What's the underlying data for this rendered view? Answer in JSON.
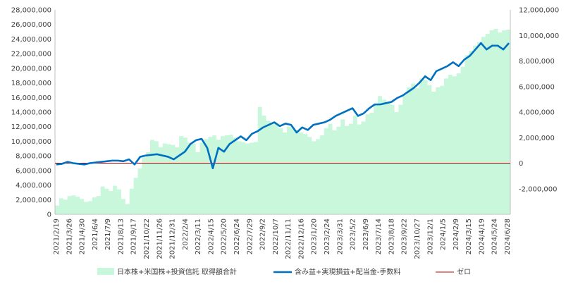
{
  "chart_data": {
    "type": "area+line",
    "title": "",
    "xlabel": "",
    "ylabel_left": "",
    "ylabel_right": "",
    "left_axis": {
      "min": 0,
      "max": 28000000,
      "step": 2000000,
      "tick_labels": [
        "0",
        "2,000,000",
        "4,000,000",
        "6,000,000",
        "8,000,000",
        "10,000,000",
        "12,000,000",
        "14,000,000",
        "16,000,000",
        "18,000,000",
        "20,000,000",
        "22,000,000",
        "24,000,000",
        "26,000,000",
        "28,000,000"
      ]
    },
    "right_axis": {
      "min": -4000000,
      "max": 12000000,
      "step": 2000000,
      "tick_labels": [
        "",
        "-2,000,000",
        "0",
        "2,000,000",
        "4,000,000",
        "6,000,000",
        "8,000,000",
        "10,000,000",
        "12,000,000"
      ]
    },
    "x_tick_labels": [
      "2021/2/19",
      "2021/3/26",
      "2021/4/30",
      "2021/6/4",
      "2021/7/9",
      "2021/8/13",
      "2021/9/17",
      "2021/10/22",
      "2021/11/26",
      "2021/12/31",
      "2022/2/4",
      "2022/3/11",
      "2022/4/15",
      "2022/5/20",
      "2022/6/24",
      "2022/7/29",
      "2022/9/2",
      "2022/10/7",
      "2022/11/11",
      "2022/12/16",
      "2023/1/20",
      "2023/2/24",
      "2023/3/31",
      "2023/5/2",
      "2023/6/9",
      "2023/7/14",
      "2023/8/18",
      "2023/9/22",
      "2023/10/27",
      "2023/12/1",
      "2024/1/5",
      "2024/2/9",
      "2024/3/15",
      "2024/4/19",
      "2024/5/24",
      "2024/6/28"
    ],
    "series": [
      {
        "name": "日本株+米国株+投資信託 取得額合計",
        "axis": "left",
        "kind": "area",
        "color": "#c8f7dc",
        "values": [
          1200000,
          2200000,
          2000000,
          2500000,
          2600000,
          2400000,
          2100000,
          1700000,
          1800000,
          2300000,
          2500000,
          3800000,
          3500000,
          3200000,
          3900000,
          3400000,
          2100000,
          1400000,
          3500000,
          5000000,
          6300000,
          7800000,
          8500000,
          10200000,
          10000000,
          9200000,
          9700000,
          9600000,
          9500000,
          9200000,
          10700000,
          10500000,
          9800000,
          9700000,
          8500000,
          9800000,
          10300000,
          10600000,
          10800000,
          10200000,
          10700000,
          10800000,
          10900000,
          10500000,
          10000000,
          9900000,
          9700000,
          9800000,
          9900000,
          14700000,
          13500000,
          12800000,
          12600000,
          12400000,
          11800000,
          11200000,
          12000000,
          11900000,
          11500000,
          11200000,
          11000000,
          10600000,
          10000000,
          10300000,
          10800000,
          11800000,
          12400000,
          11500000,
          12000000,
          13000000,
          12100000,
          12400000,
          13500000,
          12300000,
          12700000,
          13700000,
          13900000,
          15000000,
          16200000,
          15700000,
          15300000,
          15000000,
          14000000,
          15000000,
          16300000,
          17400000,
          17900000,
          17300000,
          18600000,
          18400000,
          17700000,
          16800000,
          17400000,
          17600000,
          18600000,
          19100000,
          18900000,
          19300000,
          20200000,
          21800000,
          22400000,
          23100000,
          23600000,
          24300000,
          24700000,
          25200000,
          25400000,
          24900000,
          25200000,
          25300000
        ]
      },
      {
        "name": "含み益+実現損益+配当金-手数料",
        "axis": "right",
        "kind": "line",
        "color": "#0070c0",
        "values": [
          -100000,
          -50000,
          100000,
          0,
          -50000,
          -100000,
          0,
          50000,
          100000,
          150000,
          200000,
          200000,
          150000,
          300000,
          -100000,
          500000,
          600000,
          650000,
          700000,
          600000,
          500000,
          300000,
          600000,
          900000,
          1500000,
          1800000,
          1900000,
          1200000,
          -400000,
          1200000,
          900000,
          1500000,
          1800000,
          2100000,
          1800000,
          2300000,
          2500000,
          2800000,
          3000000,
          3200000,
          2900000,
          3100000,
          3000000,
          2400000,
          2800000,
          2600000,
          3000000,
          3100000,
          3200000,
          3400000,
          3700000,
          3900000,
          4100000,
          4300000,
          3700000,
          3900000,
          4300000,
          4600000,
          4600000,
          4700000,
          4800000,
          5100000,
          5300000,
          5600000,
          5900000,
          6300000,
          6800000,
          6500000,
          7200000,
          7400000,
          7600000,
          7900000,
          7600000,
          8100000,
          8400000,
          8900000,
          9400000,
          8900000,
          9200000,
          9200000,
          8900000,
          9400000
        ],
        "line_y_min": -400000
      },
      {
        "name": "ゼロ",
        "axis": "right",
        "kind": "line",
        "color": "#c00000",
        "values": [
          0,
          0
        ]
      }
    ],
    "legend_placement": "bottom",
    "grid": false
  }
}
